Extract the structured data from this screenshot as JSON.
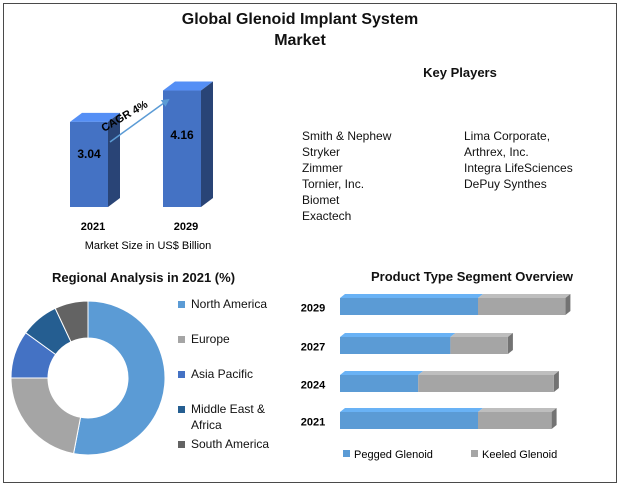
{
  "title_lines": [
    "Global Glenoid Implant System",
    "Market"
  ],
  "key_players": {
    "title": "Key Players",
    "col1": [
      "Smith & Nephew",
      "Stryker",
      "Zimmer",
      "Tornier, Inc.",
      "Biomet",
      "Exactech"
    ],
    "col2": [
      "Lima Corporate,",
      "Arthrex, Inc.",
      "Integra LifeSciences",
      "DePuy Synthes"
    ]
  },
  "colors": {
    "blue": "#4472c4",
    "light_blue": "#5b9bd5",
    "grey": "#a5a5a5",
    "dark_blue": "#255e91",
    "dark_grey": "#636363",
    "arrow": "#5b9bd5"
  },
  "chart_data": [
    {
      "type": "bar",
      "categories": [
        "2021",
        "2029"
      ],
      "values": [
        3.04,
        4.16
      ],
      "value_labels": [
        "3.04",
        "4.16"
      ],
      "xlabel": "Market Size in US$ Billion",
      "annotation": "CAGR 4%",
      "style": "3d"
    },
    {
      "type": "pie",
      "variant": "donut",
      "title": "Regional Analysis in 2021 (%)",
      "labels": [
        "North America",
        "Europe",
        "Asia Pacific",
        "Middle East & Africa",
        "South America"
      ],
      "label_lines": [
        [
          "North America"
        ],
        [
          "Europe"
        ],
        [
          "Asia Pacific"
        ],
        [
          "Middle East &",
          "Africa"
        ],
        [
          "South America"
        ]
      ],
      "values": [
        53,
        22,
        10,
        8,
        7
      ],
      "legend": "right"
    },
    {
      "type": "bar",
      "orientation": "horizontal",
      "stacked": true,
      "title": "Product Type Segment Overview",
      "categories": [
        "2029",
        "2027",
        "2024",
        "2021"
      ],
      "series": [
        {
          "name": "Pegged Glenoid",
          "values": [
            60,
            48,
            34,
            60
          ]
        },
        {
          "name": "Keeled Glenoid",
          "values": [
            38,
            25,
            59,
            32
          ]
        }
      ],
      "legend": "bottom"
    }
  ]
}
